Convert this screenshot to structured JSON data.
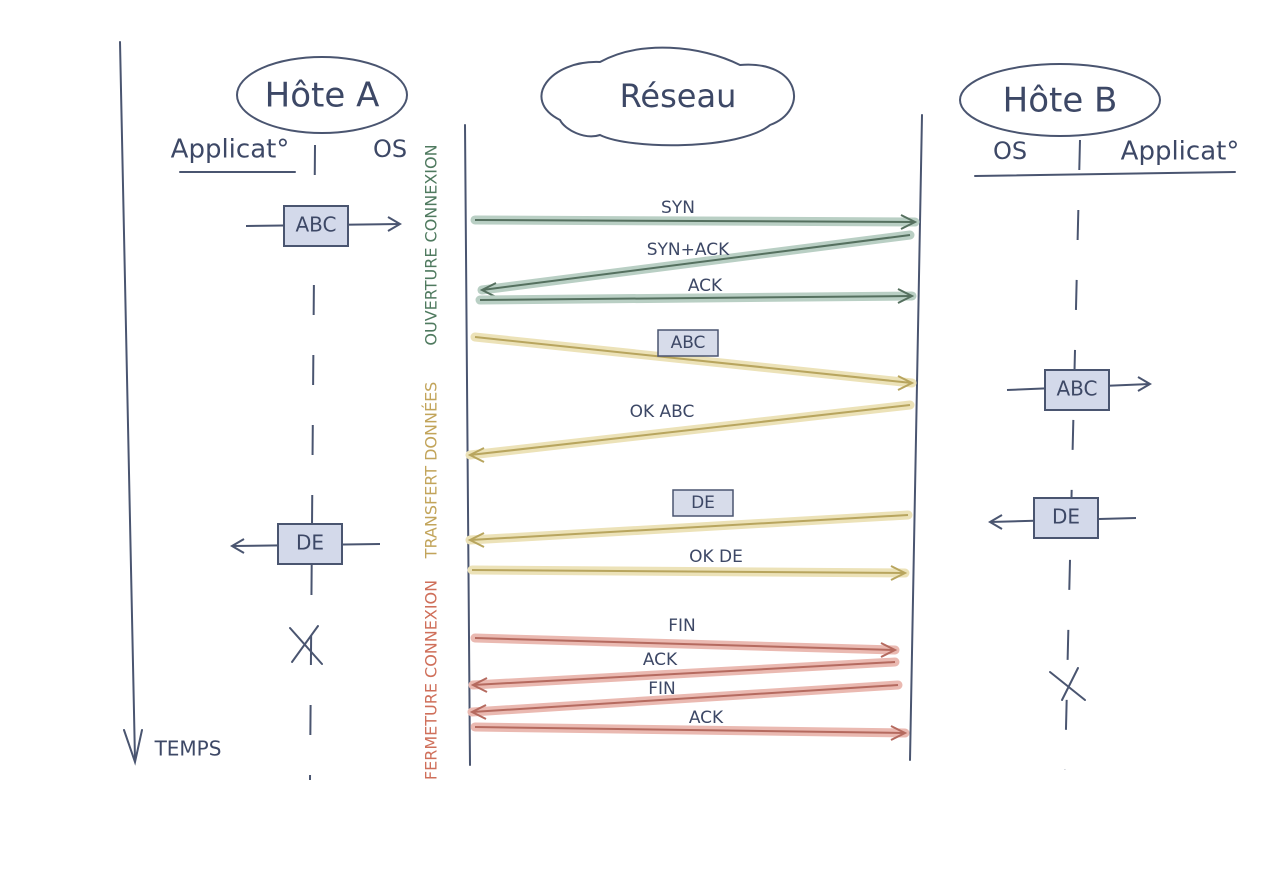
{
  "hosts": [
    {
      "label": "Hôte A",
      "columns": [
        "Applicat°",
        "OS"
      ],
      "boxes": [
        "ABC",
        "DE"
      ]
    },
    {
      "label": "Hôte B",
      "columns": [
        "OS",
        "Applicat°"
      ],
      "boxes": [
        "ABC",
        "DE"
      ]
    }
  ],
  "network": {
    "label": "Réseau"
  },
  "phases": [
    {
      "label": "OUVERTURE CONNEXION",
      "messages": [
        "SYN",
        "SYN+ACK",
        "ACK"
      ]
    },
    {
      "label": "TRANSFERT DONNÉES",
      "messages": [
        "ABC",
        "OK ABC",
        "DE",
        "OK DE"
      ]
    },
    {
      "label": "FERMETURE CONNEXION",
      "messages": [
        "FIN",
        "ACK",
        "FIN",
        "ACK"
      ]
    }
  ],
  "time_label": "TEMPS"
}
